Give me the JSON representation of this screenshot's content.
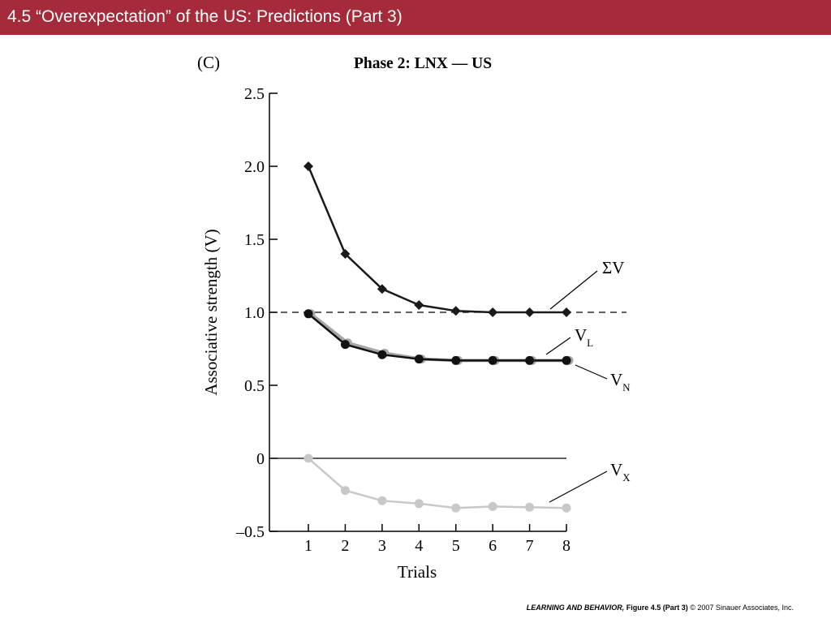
{
  "header": {
    "title": "4.5  “Overexpectation” of the US: Predictions (Part 3)"
  },
  "chart_data": {
    "type": "line",
    "panel_label": "(C)",
    "title": "Phase 2: LNX — US",
    "xlabel": "Trials",
    "ylabel": "Associative strength (V)",
    "x": [
      1,
      2,
      3,
      4,
      5,
      6,
      7,
      8
    ],
    "xlim": [
      0.1,
      8
    ],
    "ylim": [
      -0.5,
      2.5
    ],
    "yticks": [
      -0.5,
      0,
      0.5,
      1.0,
      1.5,
      2.0,
      2.5
    ],
    "ytick_labels": [
      "–0.5",
      "0",
      "0.5",
      "1.0",
      "1.5",
      "2.0",
      "2.5"
    ],
    "xtick_labels": [
      "1",
      "2",
      "3",
      "4",
      "5",
      "6",
      "7",
      "8"
    ],
    "reference_line": {
      "y": 1.0,
      "style": "dashed"
    },
    "zero_line": {
      "y": 0
    },
    "series": [
      {
        "key": "sumV",
        "name": "ΣV",
        "label_main": "ΣV",
        "label_sub": "",
        "marker": "diamond",
        "color": "#1a1a1a",
        "values": [
          2.0,
          1.4,
          1.16,
          1.05,
          1.01,
          1.0,
          1.0,
          1.0
        ]
      },
      {
        "key": "VL",
        "name": "VL",
        "label_main": "V",
        "label_sub": "L",
        "marker": "circle",
        "color": "#a6a6a6",
        "values": [
          0.99,
          0.79,
          0.72,
          0.68,
          0.67,
          0.67,
          0.67,
          0.67
        ]
      },
      {
        "key": "VN",
        "name": "VN",
        "label_main": "V",
        "label_sub": "N",
        "marker": "circle",
        "color": "#111111",
        "values": [
          0.99,
          0.78,
          0.71,
          0.68,
          0.67,
          0.67,
          0.67,
          0.67
        ]
      },
      {
        "key": "VX",
        "name": "VX",
        "label_main": "V",
        "label_sub": "X",
        "marker": "circle",
        "color": "#c8c8c8",
        "values": [
          0,
          -0.22,
          -0.29,
          -0.31,
          -0.34,
          -0.33,
          -0.335,
          -0.34
        ]
      }
    ]
  },
  "footer": {
    "book": "LEARNING AND BEHAVIOR,",
    "figure": "Figure 4.5 (Part 3)",
    "copyright": "© 2007 Sinauer Associates, Inc."
  }
}
